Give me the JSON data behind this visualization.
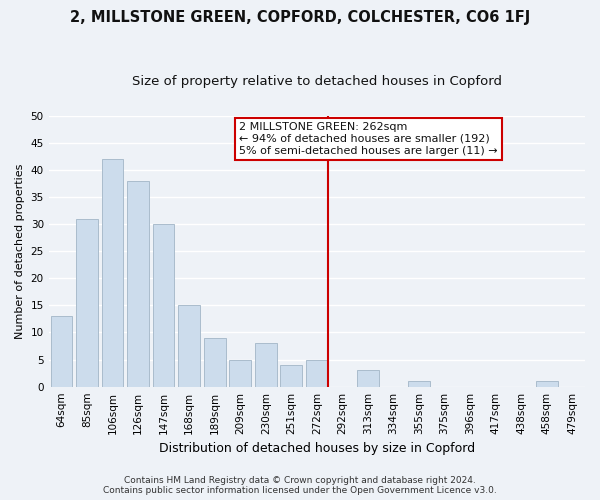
{
  "title": "2, MILLSTONE GREEN, COPFORD, COLCHESTER, CO6 1FJ",
  "subtitle": "Size of property relative to detached houses in Copford",
  "xlabel": "Distribution of detached houses by size in Copford",
  "ylabel": "Number of detached properties",
  "bar_labels": [
    "64sqm",
    "85sqm",
    "106sqm",
    "126sqm",
    "147sqm",
    "168sqm",
    "189sqm",
    "209sqm",
    "230sqm",
    "251sqm",
    "272sqm",
    "292sqm",
    "313sqm",
    "334sqm",
    "355sqm",
    "375sqm",
    "396sqm",
    "417sqm",
    "438sqm",
    "458sqm",
    "479sqm"
  ],
  "bar_values": [
    13,
    31,
    42,
    38,
    30,
    15,
    9,
    5,
    8,
    4,
    5,
    0,
    3,
    0,
    1,
    0,
    0,
    0,
    0,
    1,
    0
  ],
  "bar_color": "#ccdcec",
  "bar_edge_color": "#aabccc",
  "vline_index": 10,
  "vline_color": "#cc0000",
  "ylim": [
    0,
    50
  ],
  "yticks": [
    0,
    5,
    10,
    15,
    20,
    25,
    30,
    35,
    40,
    45,
    50
  ],
  "annotation_title": "2 MILLSTONE GREEN: 262sqm",
  "annotation_line1": "← 94% of detached houses are smaller (192)",
  "annotation_line2": "5% of semi-detached houses are larger (11) →",
  "annotation_box_color": "#ffffff",
  "annotation_box_edge": "#cc0000",
  "footer_line1": "Contains HM Land Registry data © Crown copyright and database right 2024.",
  "footer_line2": "Contains public sector information licensed under the Open Government Licence v3.0.",
  "background_color": "#eef2f7",
  "grid_color": "#ffffff",
  "title_fontsize": 10.5,
  "subtitle_fontsize": 9.5,
  "ylabel_fontsize": 8,
  "xlabel_fontsize": 9,
  "tick_fontsize": 7.5,
  "footer_fontsize": 6.5,
  "annot_fontsize": 8
}
